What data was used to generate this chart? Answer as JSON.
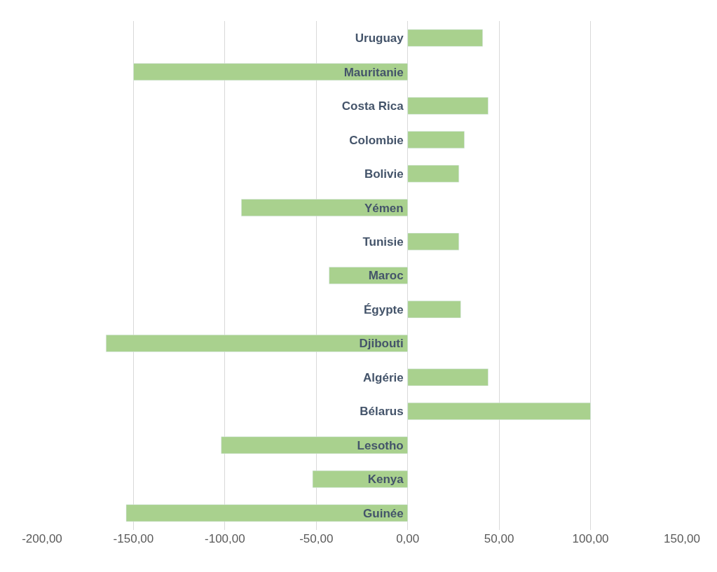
{
  "chart_data": {
    "type": "bar",
    "orientation": "horizontal",
    "categories": [
      "Uruguay",
      "Mauritanie",
      "Costa Rica",
      "Colombie",
      "Bolivie",
      "Yémen",
      "Tunisie",
      "Maroc",
      "Égypte",
      "Djibouti",
      "Algérie",
      "Bélarus",
      "Lesotho",
      "Kenya",
      "Guinée"
    ],
    "values": [
      41,
      -150,
      44,
      31,
      28,
      -91,
      28,
      -43,
      29,
      -165,
      44,
      100,
      -102,
      -52,
      -154
    ],
    "color": "#a9d18e",
    "xlim": [
      -200,
      150
    ],
    "xticks": [
      {
        "value": -200,
        "label": "-200,00"
      },
      {
        "value": -150,
        "label": "-150,00"
      },
      {
        "value": -100,
        "label": "-100,00"
      },
      {
        "value": -50,
        "label": "-50,00"
      },
      {
        "value": 0,
        "label": "0,00"
      },
      {
        "value": 50,
        "label": "50,00"
      },
      {
        "value": 100,
        "label": "100,00"
      },
      {
        "value": 150,
        "label": "150,00"
      }
    ],
    "grid": "x",
    "legend": false
  }
}
